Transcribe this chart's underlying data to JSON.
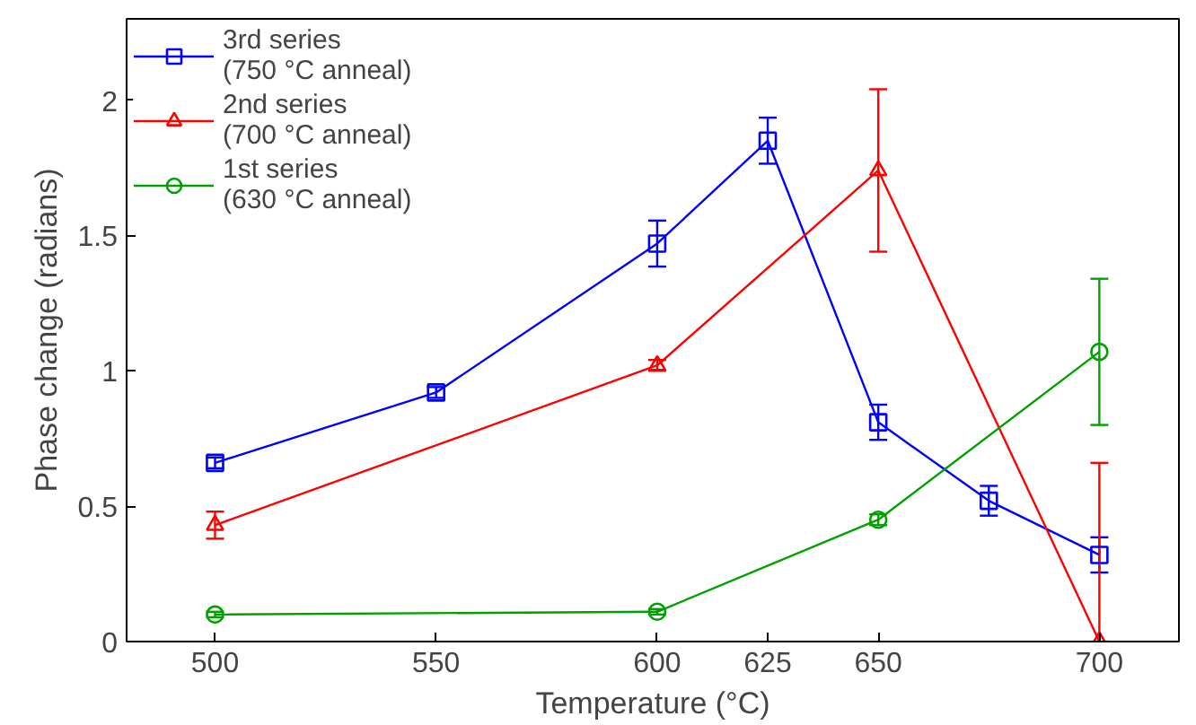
{
  "chart_data": {
    "type": "line",
    "xlabel": "Temperature (°C)",
    "ylabel": "Phase change (radians)",
    "xlim": [
      480,
      718
    ],
    "xticks": [
      500,
      550,
      600,
      625,
      650,
      700
    ],
    "ylim": [
      0,
      2.3
    ],
    "yticks": [
      0,
      0.5,
      1,
      1.5,
      2
    ],
    "legend": "top left",
    "grid": false,
    "series": [
      {
        "name": "3rd series\n(750 °C anneal)",
        "color": "#0000ff",
        "marker": "square",
        "x": [
          500,
          550,
          600,
          625,
          650,
          675,
          700
        ],
        "values": [
          0.66,
          0.92,
          1.47,
          1.85,
          0.81,
          0.52,
          0.32
        ],
        "errors": [
          0.02,
          0.02,
          0.085,
          0.085,
          0.065,
          0.055,
          0.065
        ]
      },
      {
        "name": "2nd series\n(700 °C anneal)",
        "color": "#ff0000",
        "marker": "triangle",
        "x": [
          500,
          600,
          650,
          700
        ],
        "values": [
          0.43,
          1.02,
          1.74,
          0
        ],
        "errors": [
          0.05,
          0.02,
          0.3,
          [
            0,
            0.66
          ]
        ]
      },
      {
        "name": "1st series\n(630 °C anneal)",
        "color": "#00a000",
        "marker": "circle",
        "x": [
          500,
          600,
          650,
          700
        ],
        "values": [
          0.1,
          0.11,
          0.45,
          1.07
        ],
        "errors": [
          0.01,
          0.01,
          0.02,
          0.27
        ]
      }
    ]
  }
}
